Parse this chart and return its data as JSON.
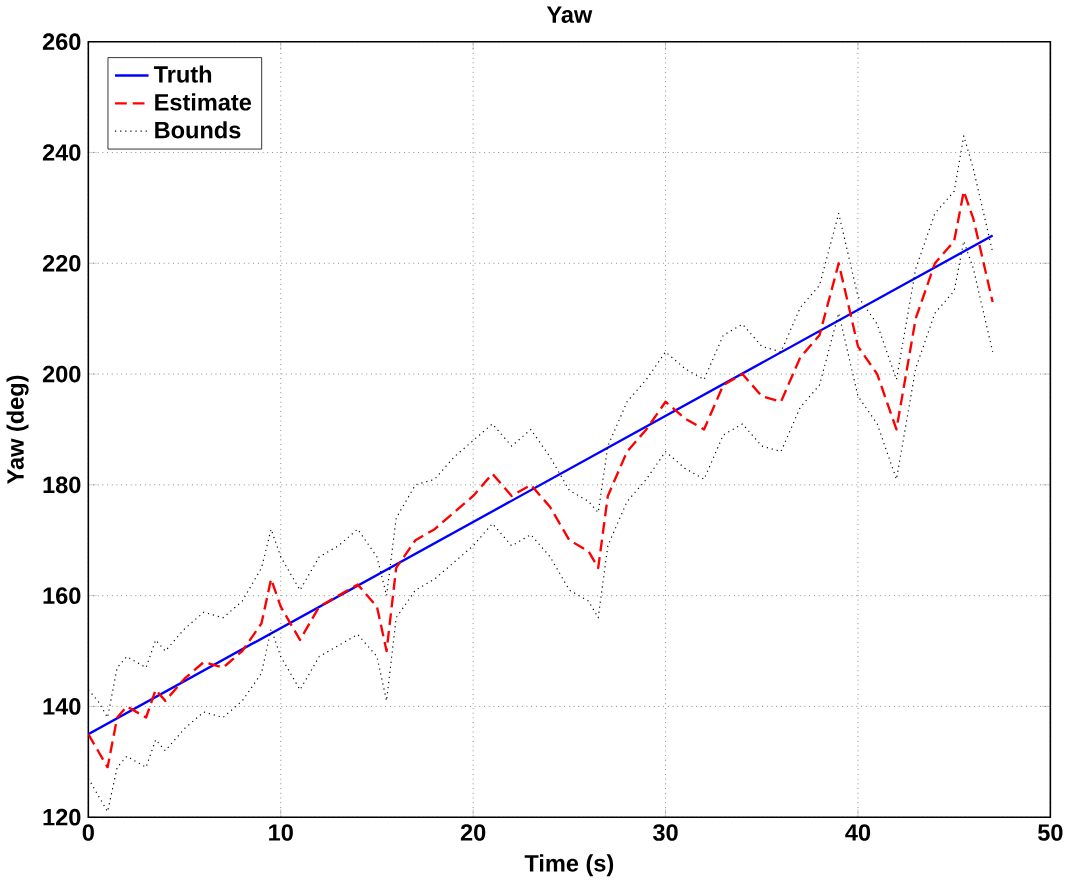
{
  "chart_data": {
    "type": "line",
    "title": "Yaw",
    "xlabel": "Time (s)",
    "ylabel": "Yaw (deg)",
    "xlim": [
      0,
      50
    ],
    "ylim": [
      120,
      260
    ],
    "xticks": [
      0,
      10,
      20,
      30,
      40,
      50
    ],
    "yticks": [
      120,
      140,
      160,
      180,
      200,
      220,
      240,
      260
    ],
    "grid": true,
    "legend": "top left",
    "series": [
      {
        "name": "Truth",
        "color": "#0000ff",
        "line_style": "solid",
        "x": [
          0,
          47
        ],
        "values": [
          135,
          225
        ]
      },
      {
        "name": "Estimate",
        "color": "#ff0000",
        "line_style": "dashed",
        "x": [
          0,
          0.5,
          1,
          1.5,
          2,
          3,
          3.5,
          4,
          5,
          6,
          7,
          8,
          9,
          9.5,
          10,
          11,
          12,
          13,
          14,
          15,
          15.5,
          16,
          17,
          18,
          19,
          20,
          21,
          22,
          23,
          24,
          25,
          26,
          26.5,
          27,
          28,
          29,
          30,
          31,
          32,
          33,
          34,
          35,
          36,
          37,
          38,
          39,
          40,
          41,
          42,
          43,
          44,
          45,
          45.5,
          46,
          47
        ],
        "values": [
          135,
          132,
          129,
          138,
          140,
          138,
          143,
          141,
          145,
          148,
          147,
          150,
          155,
          163,
          158,
          152,
          158,
          160,
          162,
          158,
          150,
          165,
          170,
          172,
          175,
          178,
          182,
          178,
          180,
          176,
          170,
          168,
          165,
          178,
          186,
          190,
          195,
          192,
          190,
          198,
          200,
          196,
          195,
          203,
          207,
          220,
          205,
          200,
          190,
          210,
          220,
          224,
          233,
          228,
          213
        ]
      },
      {
        "name": "Bounds",
        "color": "#000000",
        "line_style": "dotted",
        "x": [
          0,
          0.5,
          1,
          1.5,
          2,
          3,
          3.5,
          4,
          5,
          6,
          7,
          8,
          9,
          9.5,
          10,
          11,
          12,
          13,
          14,
          15,
          15.5,
          16,
          17,
          18,
          19,
          20,
          21,
          22,
          23,
          24,
          25,
          26,
          26.5,
          27,
          28,
          29,
          30,
          31,
          32,
          33,
          34,
          35,
          36,
          37,
          38,
          39,
          40,
          41,
          42,
          43,
          44,
          45,
          45.5,
          46,
          47
        ],
        "values": [
          143,
          141,
          138,
          147,
          149,
          147,
          152,
          150,
          154,
          157,
          156,
          159,
          165,
          172,
          167,
          161,
          167,
          169,
          172,
          167,
          160,
          174,
          180,
          181,
          185,
          188,
          191,
          187,
          190,
          185,
          179,
          177,
          175,
          187,
          195,
          199,
          204,
          201,
          199,
          207,
          209,
          205,
          204,
          212,
          216,
          229,
          214,
          209,
          199,
          219,
          229,
          233,
          243,
          237,
          222
        ]
      },
      {
        "color": "#000000",
        "line_style": "dotted",
        "x": [
          0,
          0.5,
          1,
          1.5,
          2,
          3,
          3.5,
          4,
          5,
          6,
          7,
          8,
          9,
          9.5,
          10,
          11,
          12,
          13,
          14,
          15,
          15.5,
          16,
          17,
          18,
          19,
          20,
          21,
          22,
          23,
          24,
          25,
          26,
          26.5,
          27,
          28,
          29,
          30,
          31,
          32,
          33,
          34,
          35,
          36,
          37,
          38,
          39,
          40,
          41,
          42,
          43,
          44,
          45,
          45.5,
          46,
          47
        ],
        "values": [
          127,
          124,
          121,
          129,
          131,
          129,
          134,
          132,
          136,
          139,
          138,
          141,
          146,
          154,
          149,
          143,
          149,
          151,
          153,
          149,
          141,
          156,
          161,
          163,
          166,
          169,
          173,
          169,
          171,
          167,
          161,
          159,
          156,
          169,
          177,
          181,
          186,
          183,
          181,
          189,
          191,
          187,
          186,
          194,
          198,
          211,
          196,
          191,
          181,
          201,
          211,
          215,
          224,
          219,
          204
        ]
      }
    ]
  }
}
